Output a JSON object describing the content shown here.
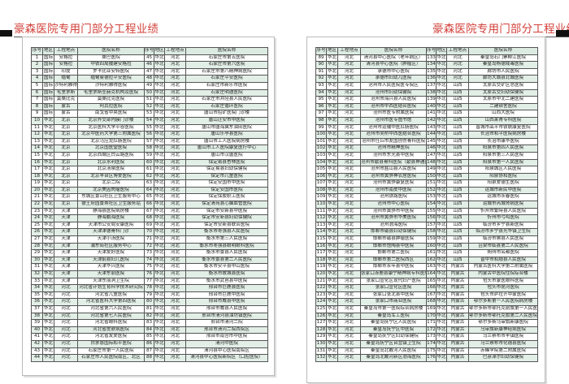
{
  "title_left": "豪森医院专用门部分工程业绩",
  "title_right": "豪森医院专用门部分工程业绩",
  "headers": [
    "序号",
    "地区",
    "工程地点",
    "医院名称",
    "序号",
    "地区",
    "工程地点",
    "医院名称"
  ],
  "left": {
    "rowsA": [
      [
        "1",
        "国际",
        "安格拉",
        "桑巴医院"
      ],
      [
        "2",
        "国际",
        "安格拉",
        "中铁四局援建安格拉"
      ],
      [
        "3",
        "国际",
        "印度",
        "罗卡比亚安特医院"
      ],
      [
        "4",
        "国际",
        "缅甸",
        "缅甸曼德拉平安医院"
      ],
      [
        "5",
        "国际",
        "沙特利雅得",
        "沙特利雅得医院"
      ],
      [
        "6",
        "国际",
        "毛里求斯",
        "毛里求斯圣赫克机构及医院"
      ],
      [
        "7",
        "国际",
        "莫桑比克",
        "莫桑比克医院"
      ],
      [
        "8",
        "国际",
        "蒙古",
        "阿其拉医院"
      ],
      [
        "9",
        "国际",
        "蒙古",
        "南戈省中央医院"
      ],
      [
        "10",
        "华北",
        "北京",
        "北京外交部内膜门诊楼"
      ],
      [
        "11",
        "华北",
        "北京",
        "北京医科大学平谷医院"
      ],
      [
        "12",
        "华北",
        "北京",
        "北京中医药大学第三附属医院"
      ],
      [
        "13",
        "华北",
        "北京",
        "北京马应龙肛肠医院"
      ],
      [
        "14",
        "华北",
        "北京",
        "北京国医堂医院"
      ],
      [
        "15",
        "华北",
        "北京",
        "北京西城区白云路医院"
      ],
      [
        "16",
        "华北",
        "北京",
        "北京水利医院"
      ],
      [
        "17",
        "华北",
        "北京",
        "北京汤泉医院"
      ],
      [
        "18",
        "华北",
        "北京",
        "北京丰台区博爱医院"
      ],
      [
        "19",
        "华北",
        "北京",
        "北京二院"
      ],
      [
        "20",
        "华北",
        "北京",
        "北京美因肉瘤医院"
      ],
      [
        "21",
        "华北",
        "北京",
        "东城区景山社区卫生服务中心"
      ],
      [
        "22",
        "华北",
        "北京",
        "德王府园景寿社区卫生服务站"
      ],
      [
        "23",
        "华北",
        "天津",
        "静海县医院病房楼"
      ],
      [
        "24",
        "华北",
        "天津",
        "静海鹏海医院"
      ],
      [
        "25",
        "华北",
        "天津",
        "天津市公安局安康医院"
      ],
      [
        "26",
        "华北",
        "天津",
        "天津津德骨科门诊"
      ],
      [
        "27",
        "华北",
        "天津",
        "天津小汤医院"
      ],
      [
        "28",
        "华北",
        "天津",
        "浦东街社区服务中心"
      ],
      [
        "29",
        "华北",
        "天津",
        "天津友好医院"
      ],
      [
        "30",
        "华北",
        "天津",
        "天津蓟县妇儿医院"
      ],
      [
        "31",
        "华北",
        "天津",
        "天津华兴医院"
      ],
      [
        "32",
        "华北",
        "天津",
        "天津东丽医院"
      ],
      [
        "33",
        "华北",
        "天津",
        "天津东丽洞卫生院"
      ],
      [
        "34",
        "华北",
        "河北",
        "河北省计划生育科学技术研究院"
      ],
      [
        "35",
        "华北",
        "河北",
        "河北省儿童医院"
      ],
      [
        "36",
        "华北",
        "河北",
        "河北省医科大学第四医院"
      ],
      [
        "37",
        "华北",
        "河北",
        "河北省第六人民医院"
      ],
      [
        "38",
        "华北",
        "河北",
        "河北省第七人民医院"
      ],
      [
        "39",
        "华北",
        "河北",
        "河北省眼科医院"
      ],
      [
        "40",
        "华北",
        "河北",
        "河北省皮肤病医院"
      ],
      [
        "41",
        "华北",
        "河北",
        "河北省友爱医院"
      ],
      [
        "42",
        "华北",
        "河北",
        "白求恩国际和平医院"
      ],
      [
        "43",
        "华北",
        "河北",
        "石家庄市第一人民医院"
      ],
      [
        "44",
        "华北",
        "河北",
        "石家庄市人民医院南区、北区"
      ]
    ],
    "rowsB": [
      [
        "45",
        "华北",
        "河北",
        "石家庄市第五医院"
      ],
      [
        "46",
        "华北",
        "河北",
        "石家庄市第六医院"
      ],
      [
        "47",
        "华北",
        "河北",
        "石家庄市第八精神病医院"
      ],
      [
        "48",
        "华北",
        "河北",
        "石家庄平安医院"
      ],
      [
        "49",
        "华北",
        "河北",
        "石家庄市新乐市医院"
      ],
      [
        "50",
        "华北",
        "河北",
        "石家庄明迪医院"
      ],
      [
        "51",
        "华北",
        "河北",
        "石家庄市井陉县人民医院"
      ],
      [
        "52",
        "华北",
        "河北",
        "石家庄循环医院"
      ],
      [
        "53",
        "华北",
        "河北",
        "唐山市招矿医院门诊楼"
      ],
      [
        "54",
        "华北",
        "河北",
        "唐山迁安市中医院"
      ],
      [
        "55",
        "华北",
        "河北",
        "唐山市唐海冀东油田医院"
      ],
      [
        "56",
        "华北",
        "河北",
        "唐山乐亭县医院"
      ],
      [
        "57",
        "华北",
        "河北",
        "唐山市工人医院病房楼"
      ],
      [
        "58",
        "华北",
        "河北",
        "唐山市工人医院康复医疗中心"
      ],
      [
        "59",
        "华北",
        "河北",
        "唐山市汉唐医院"
      ],
      [
        "60",
        "华北",
        "河北",
        "保定易县杏林医院"
      ],
      [
        "61",
        "华北",
        "河北",
        "保定易县妇幼保健院"
      ],
      [
        "62",
        "华北",
        "河北",
        "保定市儿童医院"
      ],
      [
        "63",
        "华北",
        "河北",
        "保定安国市中医院"
      ],
      [
        "64",
        "华北",
        "河北",
        "保定安国市医院"
      ],
      [
        "65",
        "华北",
        "河北",
        "保定保胶职工医院"
      ],
      [
        "66",
        "华北",
        "河北",
        "保定清苑县心脑血管医院"
      ],
      [
        "67",
        "华北",
        "河北",
        "保定市安新县中医院"
      ],
      [
        "68",
        "华北",
        "河北",
        "保定市安新县妇幼保健院"
      ],
      [
        "69",
        "华北",
        "河北",
        "保定市安新县联合医院"
      ],
      [
        "70",
        "华北",
        "河北",
        "衡水市枣强县人民医院"
      ],
      [
        "71",
        "华北",
        "河北",
        "衡水市第三人民医院"
      ],
      [
        "72",
        "华北",
        "河北",
        "衡水市枣强县眼明眼科医院"
      ],
      [
        "73",
        "华北",
        "河北",
        "衡水市景县人民医院"
      ],
      [
        "74",
        "华北",
        "河北",
        "衡水市景县第二人民医院"
      ],
      [
        "75",
        "华北",
        "河北",
        "衡水市安平县中山医院"
      ],
      [
        "76",
        "华北",
        "河北",
        "衡水市故城县医院"
      ],
      [
        "77",
        "华北",
        "河北",
        "衡水市武邑县中医院"
      ],
      [
        "78",
        "华北",
        "河北",
        "邢台市巨鹿县医院"
      ],
      [
        "79",
        "华北",
        "河北",
        "邢台市巨鹿中医院"
      ],
      [
        "80",
        "华北",
        "河北",
        "邢台市威县中医院"
      ],
      [
        "81",
        "华北",
        "河北",
        "邢台市威县人民医院"
      ],
      [
        "82",
        "华北",
        "河北",
        "邢台市清河县油坊镇医院"
      ],
      [
        "83",
        "华北",
        "河北",
        "邢台市清河二院"
      ],
      [
        "84",
        "华北",
        "河北",
        "邢台市清河二院西院区"
      ],
      [
        "85",
        "华北",
        "河北",
        "邢台市南宫市中医院"
      ],
      [
        "86",
        "华北",
        "河北",
        "清河中医院"
      ],
      [
        "87",
        "华北",
        "河北",
        "清河县中心医院南院区"
      ],
      [
        "88",
        "华北",
        "河北",
        "清河县中心医院新院区（口腔医院）"
      ]
    ]
  },
  "right": {
    "rowsA": [
      [
        "89",
        "华北",
        "河北",
        "清河县中心医院（老年病区）"
      ],
      [
        "90",
        "华北",
        "河北",
        "清河县中心医院（肿瘤区）"
      ],
      [
        "91",
        "华北",
        "河北",
        "承德市中心医院"
      ],
      [
        "92",
        "华北",
        "河北",
        "承德市妇幼儿医院"
      ],
      [
        "93",
        "华北",
        "河北",
        "沧州市人民医院医专院区"
      ],
      [
        "94",
        "华北",
        "河北",
        "沧州市妇幼保健院"
      ],
      [
        "95",
        "华北",
        "河北",
        "沧州市海兴县人民医院"
      ],
      [
        "96",
        "华北",
        "河北",
        "沧州市中西医结合医院"
      ],
      [
        "97",
        "华北",
        "河北",
        "沧州市医专附属医院"
      ],
      [
        "98",
        "华北",
        "河北",
        "沧州市医专图书馆"
      ],
      [
        "99",
        "华北",
        "河北",
        "沧州市运输中医肛肠医院"
      ],
      [
        "100",
        "华北",
        "河北",
        "沧州市吴桥中西医结合医院"
      ],
      [
        "101",
        "华北",
        "河北",
        "沧州市任丘市友国创伤骨科医院"
      ],
      [
        "102",
        "华北",
        "河北",
        "沧州市精神医院"
      ],
      [
        "103",
        "华北",
        "河北",
        "沧州市东光县中医院"
      ],
      [
        "104",
        "华北",
        "河北",
        "沧州市献县骨科医院（献县神通医院）"
      ],
      [
        "105",
        "华北",
        "河北",
        "沧州市盐山县人民医院"
      ],
      [
        "106",
        "华北",
        "河北",
        "沧州市黄骅神农居医院"
      ],
      [
        "107",
        "华北",
        "河北",
        "沧州市黄骅康复医院"
      ],
      [
        "108",
        "华北",
        "河北",
        "沧州市南皮中医院"
      ],
      [
        "109",
        "华北",
        "河北",
        "沧州铁路医院"
      ],
      [
        "110",
        "华北",
        "河北",
        "沧州市中心医院"
      ],
      [
        "111",
        "华北",
        "河北",
        "沧州市黄骅市中医院"
      ],
      [
        "112",
        "华北",
        "河北",
        "沧州市黄骅市华美医院"
      ],
      [
        "113",
        "华北",
        "河北",
        "沧州渤海医院"
      ],
      [
        "114",
        "华北",
        "河北",
        "邯郸市磁县妇幼保健院"
      ],
      [
        "115",
        "华北",
        "河北",
        "邯郸市磁县肿瘤医院"
      ],
      [
        "116",
        "华北",
        "河北",
        "邯郸市馆陶县中医院"
      ],
      [
        "117",
        "华北",
        "河北",
        "邯郸市第二医院"
      ],
      [
        "118",
        "华北",
        "河北",
        "邯郸市第二医院西区"
      ],
      [
        "119",
        "华北",
        "河北",
        "邯郸市永年县中医院"
      ],
      [
        "120",
        "华北",
        "河北",
        "张家口涿鹿县康宁精神病专科医院"
      ],
      [
        "121",
        "华北",
        "河北",
        "张家口宣化区现代妇产医院"
      ],
      [
        "122",
        "华北",
        "河北",
        "张家口宣化区医院"
      ],
      [
        "123",
        "华北",
        "河北",
        "张家口张北县中医院"
      ],
      [
        "124",
        "华北",
        "河北",
        "张家口市商业医院"
      ],
      [
        "125",
        "华北",
        "河北",
        "秦皇岛市第一医院综合病房楼"
      ],
      [
        "126",
        "华北",
        "河北",
        "秦皇岛军工医院"
      ],
      [
        "127",
        "华北",
        "河北",
        "秦皇岛抚宁区人民医院"
      ],
      [
        "128",
        "华北",
        "河北",
        "秦皇岛抚宁区中医院"
      ],
      [
        "129",
        "华北",
        "河北",
        "秦皇岛抚宁区妇幼保健院"
      ],
      [
        "130",
        "华北",
        "河北",
        "秦皇岛抚宁区台营镇卫生院"
      ],
      [
        "131",
        "华北",
        "河北",
        "秦皇岛北戴河人民医院"
      ],
      [
        "132",
        "华北",
        "河北",
        "秦皇岛北戴河新区渤海医院"
      ]
    ],
    "rowsB": [
      [
        "133",
        "华北",
        "河北",
        "秦皇岛石门寨柳江医院"
      ],
      [
        "134",
        "华北",
        "河北",
        "秦皇岛杨德戒毒医院"
      ],
      [
        "135",
        "华北",
        "河北",
        "廊坊市人民医院"
      ],
      [
        "136",
        "华北",
        "河北",
        "廊坊大城县北城医院"
      ],
      [
        "137",
        "华北",
        "山西",
        "太原古交矿区总医院"
      ],
      [
        "138",
        "华北",
        "山西",
        "太原古交妇幼保健院"
      ],
      [
        "139",
        "华北",
        "山西",
        "太原市中北二建医院"
      ],
      [
        "140",
        "华北",
        "山西",
        "二建宿舍医院"
      ],
      [
        "141",
        "华北",
        "山西",
        "山西大医院"
      ],
      [
        "142",
        "华北",
        "山西",
        "山西莱青专科医院"
      ],
      [
        "143",
        "华北",
        "山西",
        "晋城市高平市铁联康复医院"
      ],
      [
        "144",
        "华北",
        "山西",
        "长治市和平医院病房楼"
      ],
      [
        "145",
        "华北",
        "山西",
        "长治市康华医院"
      ],
      [
        "146",
        "华北",
        "山西",
        "阳泉市第四人民医院"
      ],
      [
        "147",
        "华北",
        "山西",
        "阳泉市第三人民医院"
      ],
      [
        "148",
        "华北",
        "山西",
        "阳泉市第一人民医院"
      ],
      [
        "149",
        "华北",
        "山西",
        "阳泉城区人民医院"
      ],
      [
        "150",
        "华北",
        "山西",
        "阳泉协和医院"
      ],
      [
        "151",
        "华北",
        "山西",
        "阳泉爱德生医院"
      ],
      [
        "152",
        "华北",
        "山西",
        "运城市新民中医院"
      ],
      [
        "153",
        "华北",
        "山西",
        "运城市永春医院"
      ],
      [
        "154",
        "华北",
        "山西",
        "运城市芮城肾病医院"
      ],
      [
        "155",
        "华北",
        "山西",
        "忻州市繁峙县人民医院"
      ],
      [
        "156",
        "华北",
        "山西",
        "忻州市弓鸣医院"
      ],
      [
        "157",
        "华北",
        "山西",
        "临汾市乡宁县新医院"
      ],
      [
        "158",
        "华北",
        "山西",
        "临汾市乡宁县光华镇卫生院"
      ],
      [
        "159",
        "华北",
        "山西",
        "临汾市隰县人民医院"
      ],
      [
        "160",
        "华北",
        "山西",
        "吕梁市临县第二人民医院"
      ],
      [
        "161",
        "华北",
        "山西",
        "朔州市名都医院"
      ],
      [
        "162",
        "华北",
        "山西",
        "晋中市和顺县人民医院"
      ],
      [
        "163",
        "华北",
        "内蒙古",
        "内蒙古医科大学第二附属医院"
      ],
      [
        "164",
        "华北",
        "内蒙古",
        "内蒙古中医院住院综合楼"
      ],
      [
        "165",
        "华北",
        "内蒙古",
        "包头市蒙医眼科医院"
      ],
      [
        "166",
        "华北",
        "内蒙古",
        "包头市昆河医院"
      ],
      [
        "167",
        "华北",
        "内蒙古",
        "包头市萨拉齐中蒙医院"
      ],
      [
        "168",
        "华北",
        "内蒙古",
        "鄂尔多斯第一人民医院病房楼"
      ],
      [
        "169",
        "华北",
        "内蒙古",
        "鄂尔多斯市鄂托克前旗第一人民医院病房楼"
      ],
      [
        "170",
        "华北",
        "内蒙古",
        "鄂尔多斯市鄂托克旗第二人民医院病房楼"
      ],
      [
        "171",
        "华北",
        "内蒙古",
        "鄂尔多斯乌审旗新康医院"
      ],
      [
        "172",
        "华北",
        "内蒙古",
        "乌审旗新康神经病医院"
      ],
      [
        "173",
        "华北",
        "内蒙古",
        "乌兰察布市丰镇医院"
      ],
      [
        "174",
        "华北",
        "内蒙古",
        "乌兰察布市化德县医院"
      ],
      [
        "175",
        "华北",
        "内蒙古",
        "赤峰学院第二附属医院"
      ],
      [
        "176",
        "华北",
        "内蒙古",
        "巴彦淖尔妇幼保健院"
      ]
    ]
  },
  "colors": {
    "title": "#d2403a",
    "stripe": "#e2efe7",
    "header": "#dcebe2"
  }
}
